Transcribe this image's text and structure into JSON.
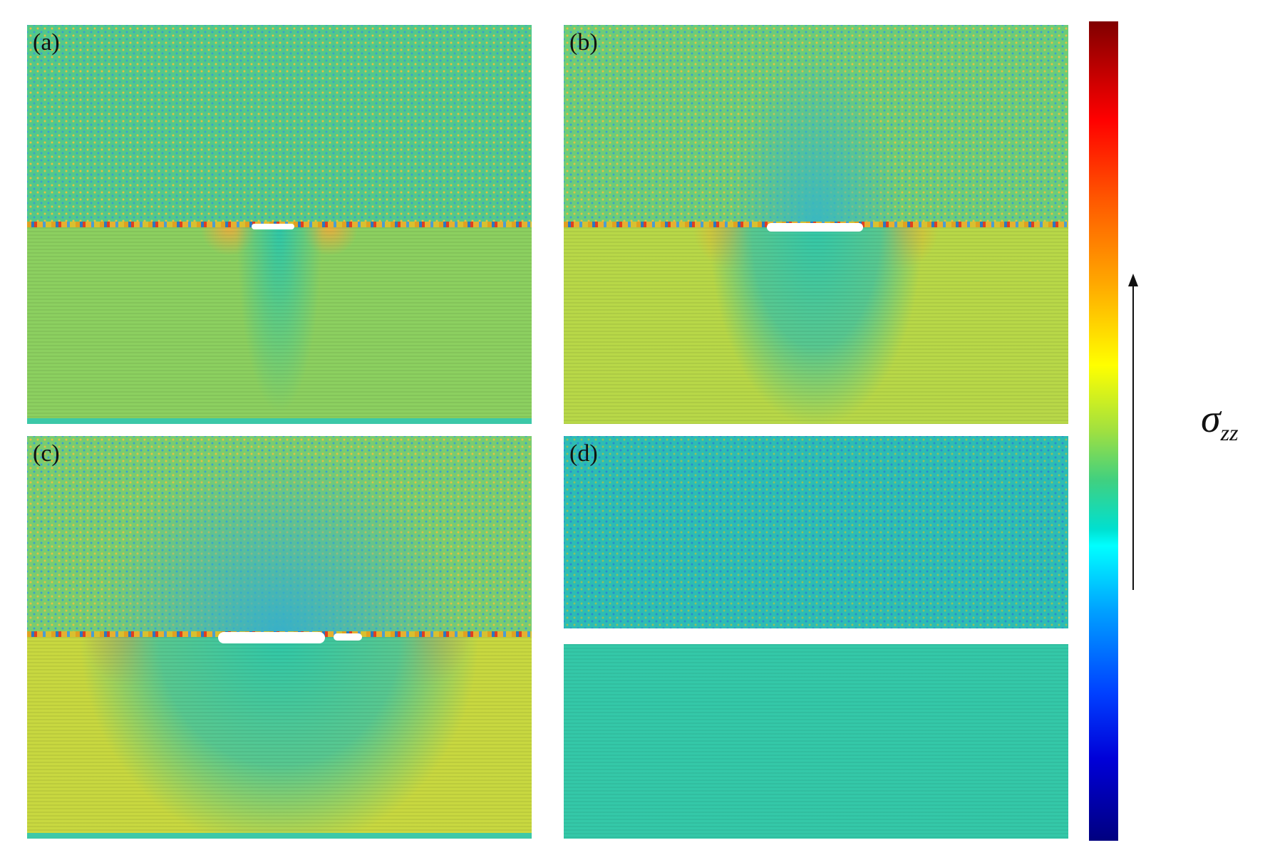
{
  "panels": [
    {
      "label": "(a)"
    },
    {
      "label": "(b)"
    },
    {
      "label": "(c)"
    },
    {
      "label": "(d)"
    }
  ],
  "colorbar": {
    "quantity_symbol": "σ",
    "quantity_subscript": "zz",
    "colors": [
      "#800000",
      "#ff0000",
      "#ffa800",
      "#ffff00",
      "#40d080",
      "#00ffff",
      "#0040ff",
      "#000080"
    ]
  }
}
